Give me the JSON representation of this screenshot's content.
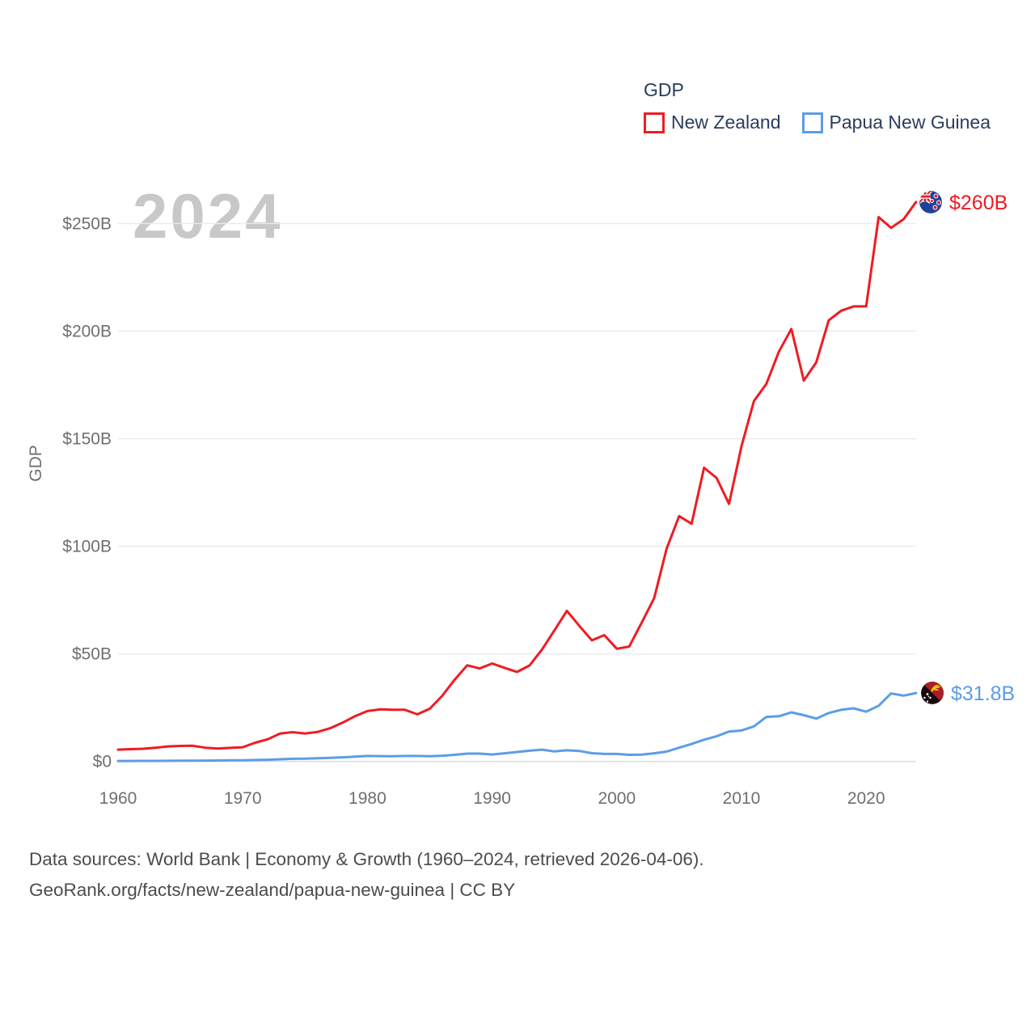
{
  "watermark": "2024",
  "legend": {
    "title": "GDP",
    "items": [
      {
        "label": "New Zealand",
        "color": "#ee1c23"
      },
      {
        "label": "Papua New Guinea",
        "color": "#5c9de6"
      }
    ]
  },
  "y_axis_title": "GDP",
  "end_labels": {
    "new_zealand": "$260B",
    "papua_new_guinea": "$31.8B"
  },
  "footer": {
    "line1": "Data sources: World Bank | Economy & Growth (1960–2024, retrieved 2026-04-06).",
    "line2": "GeoRank.org/facts/new-zealand/papua-new-guinea | CC BY"
  },
  "chart_data": {
    "type": "line",
    "title": "GDP",
    "ylabel": "GDP",
    "unit": "billion USD",
    "x_range": [
      1960,
      2024
    ],
    "ylim_billions": [
      0,
      265
    ],
    "grid": "horizontal",
    "legend_position": "top-right",
    "x_ticks": [
      1960,
      1970,
      1980,
      1990,
      2000,
      2010,
      2020
    ],
    "y_ticks": [
      {
        "value": 0,
        "label": "$0"
      },
      {
        "value": 50,
        "label": "$50B"
      },
      {
        "value": 100,
        "label": "$100B"
      },
      {
        "value": 150,
        "label": "$150B"
      },
      {
        "value": 200,
        "label": "$200B"
      },
      {
        "value": 250,
        "label": "$250B"
      }
    ],
    "x": [
      1960,
      1961,
      1962,
      1963,
      1964,
      1965,
      1966,
      1967,
      1968,
      1969,
      1970,
      1971,
      1972,
      1973,
      1974,
      1975,
      1976,
      1977,
      1978,
      1979,
      1980,
      1981,
      1982,
      1983,
      1984,
      1985,
      1986,
      1987,
      1988,
      1989,
      1990,
      1991,
      1992,
      1993,
      1994,
      1995,
      1996,
      1997,
      1998,
      1999,
      2000,
      2001,
      2002,
      2003,
      2004,
      2005,
      2006,
      2007,
      2008,
      2009,
      2010,
      2011,
      2012,
      2013,
      2014,
      2015,
      2016,
      2017,
      2018,
      2019,
      2020,
      2021,
      2022,
      2023,
      2024
    ],
    "series": [
      {
        "name": "New Zealand",
        "color": "#ee1c23",
        "end_value_label": "$260B",
        "values": [
          5.5,
          5.7,
          5.9,
          6.4,
          7.0,
          7.2,
          7.3,
          6.4,
          6.0,
          6.3,
          6.6,
          8.7,
          10.3,
          13.0,
          13.6,
          13.0,
          13.7,
          15.4,
          18.0,
          21.0,
          23.4,
          24.2,
          24.0,
          24.0,
          21.9,
          24.5,
          30.5,
          38.0,
          44.7,
          43.2,
          45.5,
          43.5,
          41.6,
          44.6,
          52.0,
          60.9,
          70.0,
          63.0,
          56.3,
          58.7,
          52.4,
          53.4,
          64.5,
          76.0,
          99.0,
          114.0,
          110.5,
          136.5,
          131.8,
          119.7,
          146.5,
          167.5,
          175.5,
          190.5,
          201.0,
          177.0,
          185.5,
          205.0,
          209.5,
          211.5,
          211.5,
          253.0,
          248.0,
          252.0,
          260.0
        ]
      },
      {
        "name": "Papua New Guinea",
        "color": "#5c9de6",
        "end_value_label": "$31.8B",
        "values": [
          0.23,
          0.24,
          0.26,
          0.28,
          0.31,
          0.34,
          0.37,
          0.4,
          0.44,
          0.51,
          0.58,
          0.68,
          0.79,
          1.0,
          1.25,
          1.32,
          1.5,
          1.65,
          1.92,
          2.25,
          2.55,
          2.47,
          2.44,
          2.56,
          2.54,
          2.43,
          2.65,
          3.1,
          3.65,
          3.66,
          3.22,
          3.8,
          4.4,
          5.0,
          5.5,
          4.65,
          5.2,
          4.9,
          3.85,
          3.5,
          3.5,
          3.1,
          3.2,
          3.8,
          4.6,
          6.4,
          8.1,
          10.1,
          11.7,
          13.9,
          14.4,
          16.3,
          20.7,
          21.0,
          22.8,
          21.5,
          19.9,
          22.5,
          24.0,
          24.7,
          23.1,
          25.9,
          31.6,
          30.6,
          31.8
        ]
      }
    ]
  }
}
